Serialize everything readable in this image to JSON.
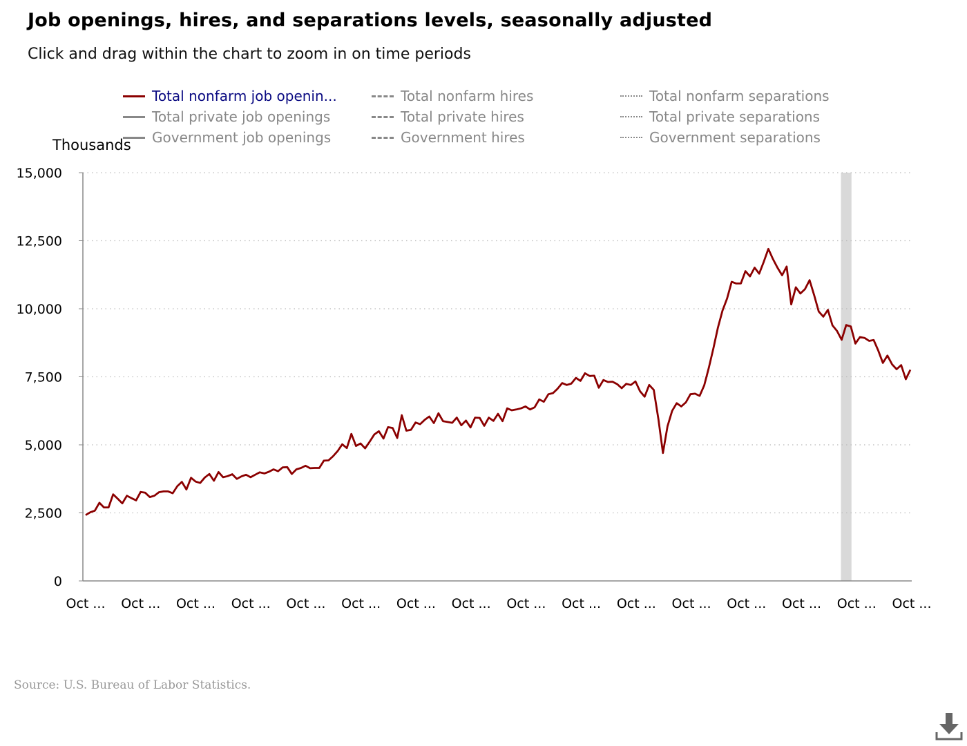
{
  "header": {
    "title": "Job openings, hires, and separations levels, seasonally adjusted",
    "subtitle": "Click and drag within the chart to zoom in on time periods"
  },
  "legend": [
    {
      "label": "Total nonfarm job openin...",
      "style": "solid",
      "active": true
    },
    {
      "label": "Total nonfarm hires",
      "style": "dashed",
      "active": false
    },
    {
      "label": "Total nonfarm separations",
      "style": "dotted",
      "active": false
    },
    {
      "label": "Total private job openings",
      "style": "solid",
      "active": false
    },
    {
      "label": "Total private hires",
      "style": "dashed",
      "active": false
    },
    {
      "label": "Total private separations",
      "style": "dotted",
      "active": false
    },
    {
      "label": "Government job openings",
      "style": "solid",
      "active": false
    },
    {
      "label": "Government hires",
      "style": "dashed",
      "active": false
    },
    {
      "label": "Government separations",
      "style": "dotted",
      "active": false
    }
  ],
  "footer": {
    "source": "Source: U.S. Bureau of Labor Statistics.",
    "download_icon": "download-icon"
  },
  "colors": {
    "series": "#8b0000",
    "active_legend_text": "#0a0a82",
    "inactive_legend": "#888888",
    "gridline": "#bbbbbb",
    "recession_band": "#d9d9d9"
  },
  "chart_data": {
    "type": "line",
    "ylabel": "Thousands",
    "ylim": [
      0,
      15000
    ],
    "yticks": [
      0,
      2500,
      5000,
      7500,
      10000,
      12500,
      15000
    ],
    "ytick_labels": [
      "0",
      "2,500",
      "5,000",
      "7,500",
      "10,000",
      "12,500",
      "15,000"
    ],
    "xtick_labels": [
      "Oct ...",
      "Oct ...",
      "Oct ...",
      "Oct ...",
      "Oct ...",
      "Oct ...",
      "Oct ...",
      "Oct ...",
      "Oct ...",
      "Oct ...",
      "Oct ...",
      "Oct ...",
      "Oct ...",
      "Oct ...",
      "Oct ...",
      "Oct ..."
    ],
    "grid": true,
    "shaded_period": {
      "start_index": 165,
      "end_index": 167
    },
    "series": [
      {
        "name": "Total nonfarm job openin...",
        "values": [
          2420,
          2520,
          2580,
          2870,
          2700,
          2700,
          3180,
          3020,
          2850,
          3130,
          3040,
          2960,
          3270,
          3240,
          3080,
          3130,
          3260,
          3290,
          3290,
          3220,
          3480,
          3640,
          3360,
          3790,
          3650,
          3600,
          3800,
          3930,
          3680,
          4000,
          3810,
          3850,
          3920,
          3750,
          3840,
          3900,
          3810,
          3900,
          3990,
          3950,
          4010,
          4100,
          4030,
          4170,
          4180,
          3930,
          4100,
          4150,
          4230,
          4140,
          4150,
          4150,
          4420,
          4430,
          4580,
          4770,
          5020,
          4880,
          5400,
          4960,
          5050,
          4870,
          5120,
          5380,
          5500,
          5230,
          5650,
          5620,
          5250,
          6090,
          5520,
          5550,
          5820,
          5760,
          5920,
          6040,
          5800,
          6160,
          5870,
          5840,
          5810,
          6000,
          5720,
          5890,
          5640,
          6000,
          5990,
          5700,
          6000,
          5880,
          6140,
          5870,
          6340,
          6270,
          6300,
          6340,
          6410,
          6300,
          6380,
          6670,
          6580,
          6860,
          6900,
          7060,
          7270,
          7200,
          7250,
          7460,
          7350,
          7630,
          7530,
          7540,
          7100,
          7380,
          7310,
          7320,
          7230,
          7080,
          7240,
          7200,
          7330,
          6970,
          6770,
          7200,
          7020,
          5950,
          4700,
          5680,
          6250,
          6530,
          6410,
          6560,
          6860,
          6880,
          6800,
          7180,
          7820,
          8540,
          9310,
          9930,
          10380,
          10990,
          10930,
          10930,
          11380,
          11190,
          11510,
          11290,
          11720,
          12200,
          11830,
          11510,
          11230,
          11550,
          10160,
          10790,
          10560,
          10720,
          11050,
          10500,
          9900,
          9710,
          9960,
          9390,
          9180,
          8860,
          9400,
          9350,
          8720,
          8960,
          8930,
          8820,
          8850,
          8460,
          8010,
          8280,
          7960,
          7780,
          7930,
          7410,
          7760
        ]
      }
    ]
  }
}
